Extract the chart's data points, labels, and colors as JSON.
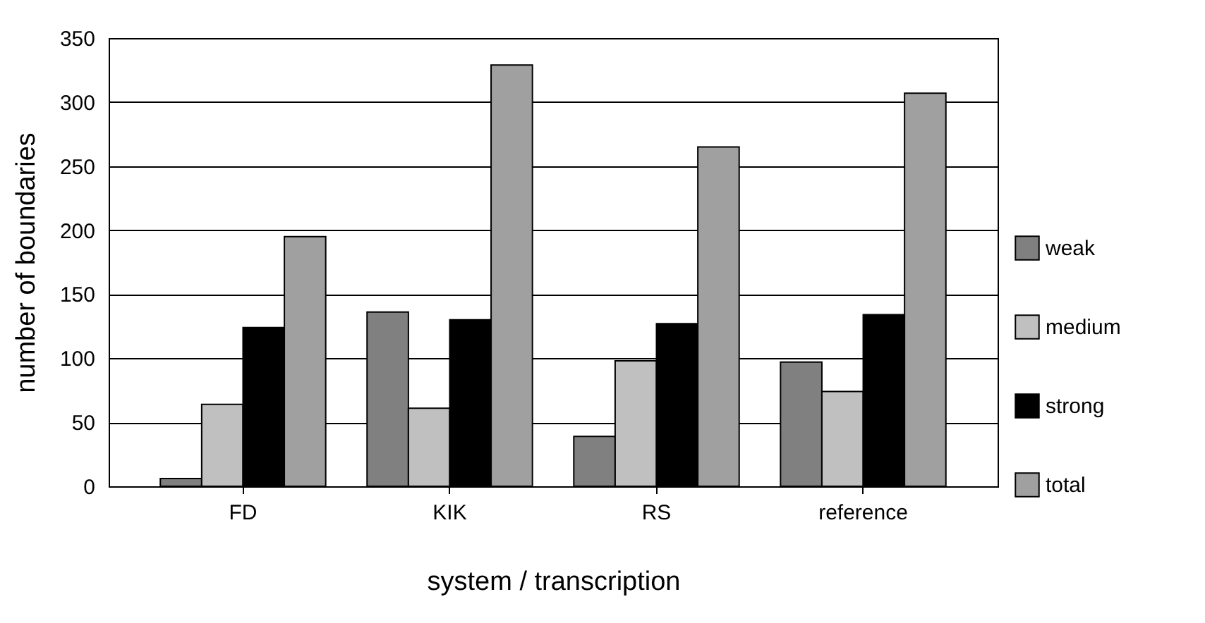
{
  "chart_data": {
    "type": "bar",
    "xlabel": "system / transcription",
    "ylabel": "number of boundaries",
    "categories": [
      "FD",
      "KIK",
      "RS",
      "reference"
    ],
    "series": [
      {
        "name": "weak",
        "color": "#808080",
        "values": [
          6,
          136,
          39,
          97
        ]
      },
      {
        "name": "medium",
        "color": "#c0c0c0",
        "values": [
          64,
          61,
          98,
          74
        ]
      },
      {
        "name": "strong",
        "color": "#000000",
        "values": [
          124,
          130,
          127,
          134
        ]
      },
      {
        "name": "total",
        "color": "#a0a0a0",
        "values": [
          195,
          329,
          265,
          307
        ]
      }
    ],
    "ylim": [
      0,
      350
    ],
    "yticks": [
      0,
      50,
      100,
      150,
      200,
      250,
      300,
      350
    ],
    "grid": "y",
    "legend": "right"
  }
}
